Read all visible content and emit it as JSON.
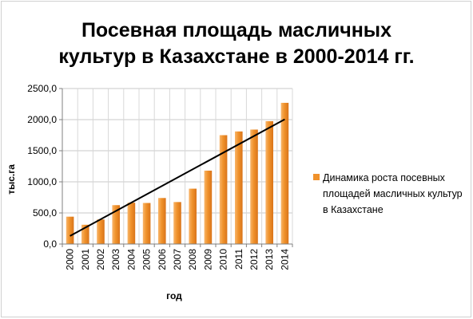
{
  "chart_data": {
    "type": "bar",
    "title_lines": [
      "Посевная площадь масличных",
      "культур в Казахстане в 2000-2014 гг."
    ],
    "xlabel": "год",
    "ylabel": "тыс.га",
    "categories": [
      "2000",
      "2001",
      "2002",
      "2003",
      "2004",
      "2005",
      "2006",
      "2007",
      "2008",
      "2009",
      "2010",
      "2011",
      "2012",
      "2013",
      "2014"
    ],
    "series": [
      {
        "name": "Динамика роста посевных площадей масличных культур в Казахстане",
        "color": "#f0922b",
        "values": [
          440,
          310,
          395,
          625,
          665,
          660,
          740,
          675,
          890,
          1180,
          1750,
          1810,
          1840,
          1975,
          2270
        ]
      }
    ],
    "trendline": {
      "type": "linear",
      "color": "#000000",
      "start": 130,
      "end": 2005
    },
    "ylim": [
      0,
      2500
    ],
    "yticks": [
      0,
      500,
      1000,
      1500,
      2000,
      2500
    ],
    "ytick_labels": [
      "0,0",
      "500,0",
      "1000,0",
      "1500,0",
      "2000,0",
      "2500,0"
    ],
    "grid": true,
    "legend_position": "right"
  }
}
